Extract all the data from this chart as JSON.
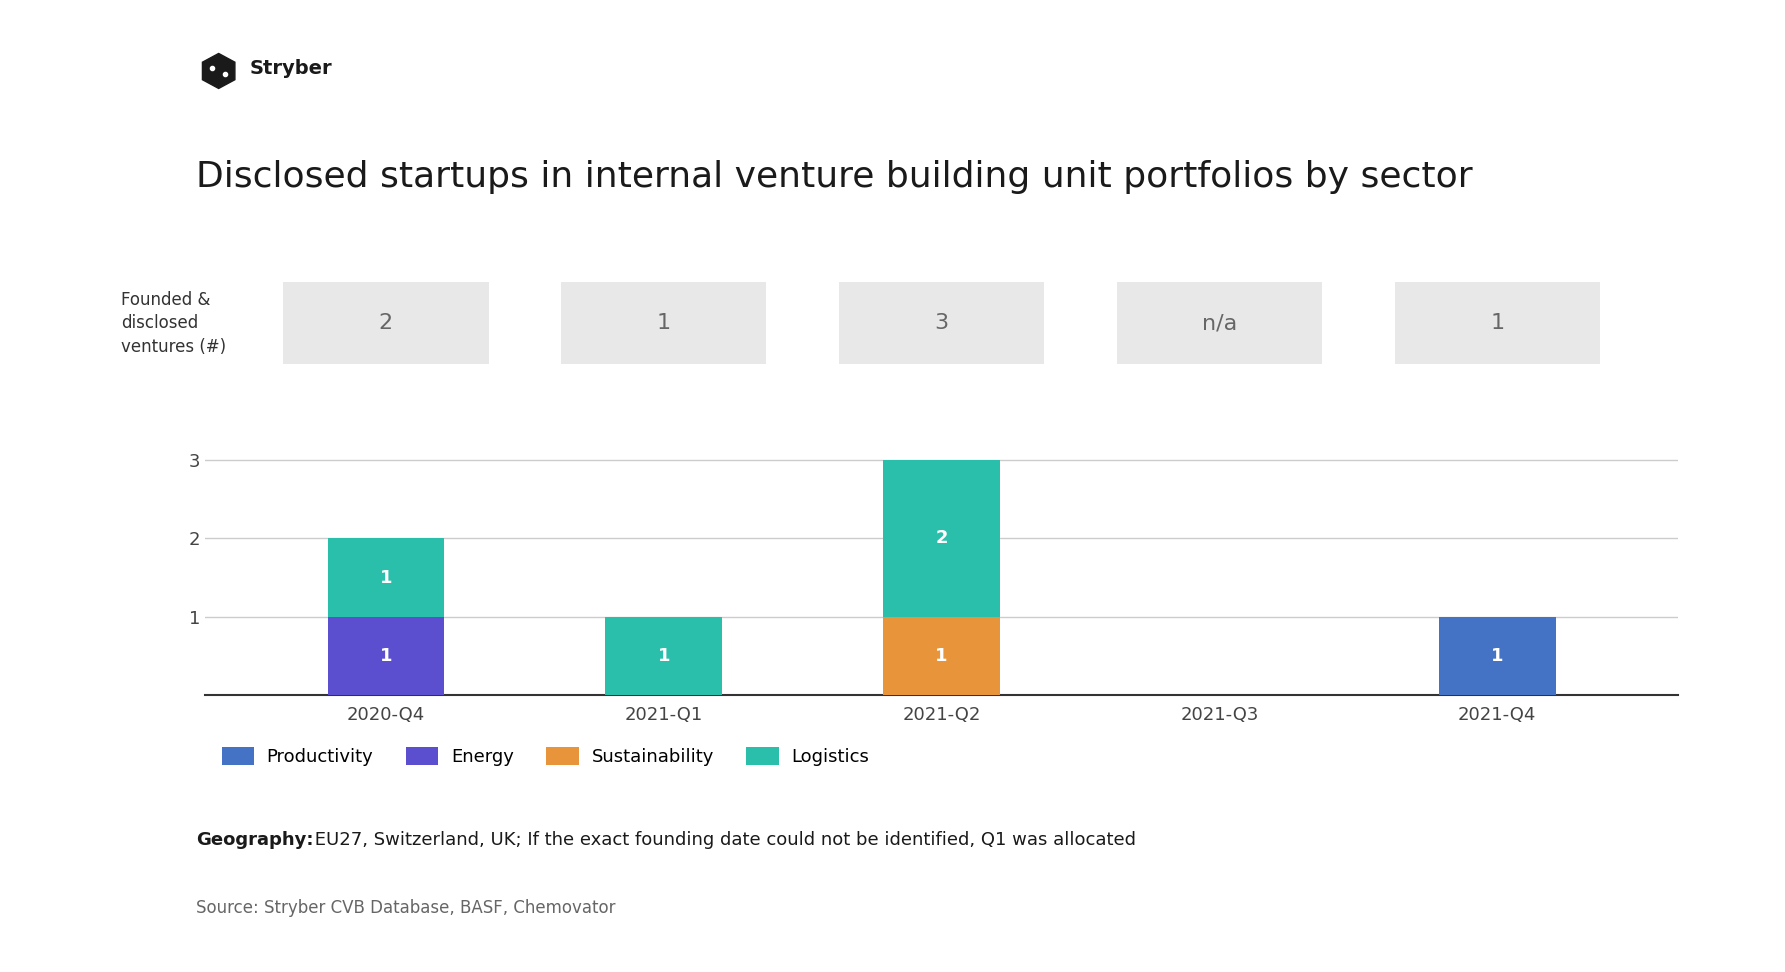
{
  "title": "Disclosed startups in internal venture building unit portfolios by sector",
  "background_color": "#ffffff",
  "plot_bg_color": "#ffffff",
  "categories": [
    "2020-Q4",
    "2021-Q1",
    "2021-Q2",
    "2021-Q3",
    "2021-Q4"
  ],
  "ventures_label": "Founded &\ndisclosed\nventures (#)",
  "ventures_values": [
    "2",
    "1",
    "3",
    "n/a",
    "1"
  ],
  "bar_data": {
    "Productivity": [
      0,
      0,
      0,
      0,
      1
    ],
    "Energy": [
      1,
      0,
      0,
      0,
      0
    ],
    "Sustainability": [
      0,
      0,
      1,
      0,
      0
    ],
    "Logistics": [
      1,
      1,
      2,
      0,
      0
    ]
  },
  "bar_colors": {
    "Productivity": "#4472C4",
    "Energy": "#5B4FCF",
    "Sustainability": "#E8943A",
    "Logistics": "#2ABFAA"
  },
  "legend_order": [
    "Productivity",
    "Energy",
    "Sustainability",
    "Logistics"
  ],
  "ylim": [
    0,
    3.6
  ],
  "yticks": [
    1,
    2,
    3
  ],
  "geography_bold": "Geography:",
  "geography_rest": " EU27, Switzerland, UK; If the exact founding date could not be identified, Q1 was allocated",
  "source_text": "Source: Stryber CVB Database, BASF, Chemovator",
  "stryber_logo_text": "Stryber",
  "card_bg_color": "#e8e8e8",
  "title_fontsize": 26,
  "axis_label_fontsize": 12,
  "tick_fontsize": 13,
  "bar_label_fontsize": 13,
  "legend_fontsize": 13,
  "note_fontsize": 13,
  "source_fontsize": 12,
  "card_fontsize": 16,
  "bar_width": 0.42
}
